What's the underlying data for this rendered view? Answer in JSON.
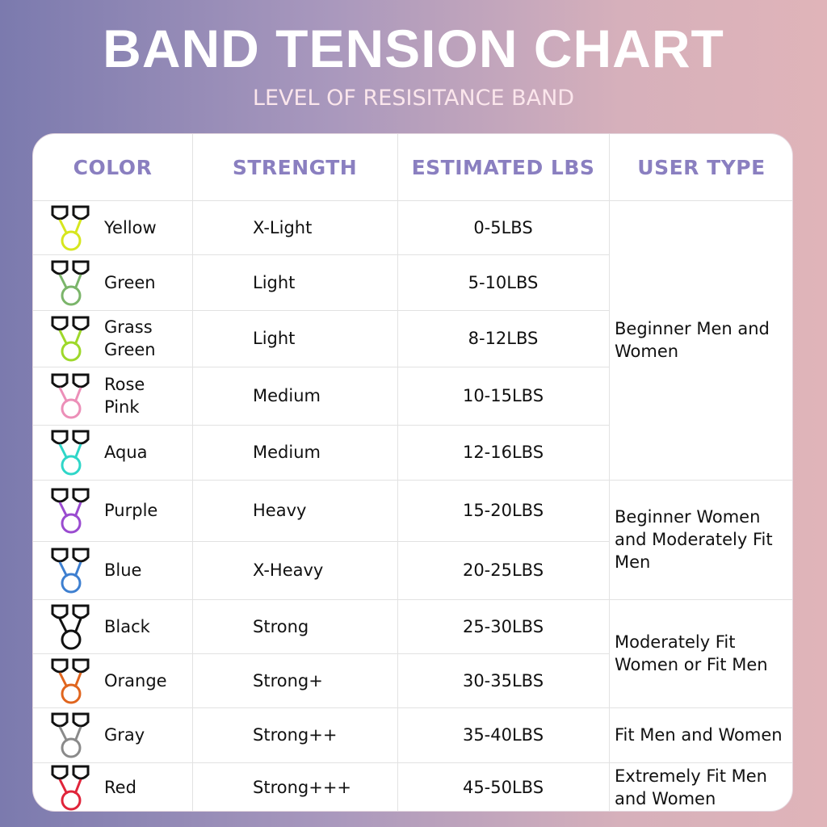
{
  "header": {
    "title": "BAND TENSION CHART",
    "subtitle": "LEVEL OF RESISITANCE BAND"
  },
  "table": {
    "columns": [
      "COLOR",
      "STRENGTH",
      "ESTIMATED LBS",
      "USER TYPE"
    ],
    "rows": [
      {
        "color": "Yellow",
        "swatch": "#d6e61e",
        "strength": "X-Light",
        "lbs": "0-5LBS"
      },
      {
        "color": "Green",
        "swatch": "#7bb56a",
        "strength": "Light",
        "lbs": "5-10LBS"
      },
      {
        "color": "Grass Green",
        "swatch": "#9ed82a",
        "strength": "Light",
        "lbs": "8-12LBS"
      },
      {
        "color": "Rose Pink",
        "swatch": "#ec8fb8",
        "strength": "Medium",
        "lbs": "10-15LBS"
      },
      {
        "color": "Aqua",
        "swatch": "#2fd6c8",
        "strength": "Medium",
        "lbs": "12-16LBS"
      },
      {
        "color": "Purple",
        "swatch": "#9a4bd0",
        "strength": "Heavy",
        "lbs": "15-20LBS"
      },
      {
        "color": "Blue",
        "swatch": "#3d7fd0",
        "strength": "X-Heavy",
        "lbs": "20-25LBS"
      },
      {
        "color": "Black",
        "swatch": "#111111",
        "strength": "Strong",
        "lbs": "25-30LBS"
      },
      {
        "color": "Orange",
        "swatch": "#e0651e",
        "strength": "Strong+",
        "lbs": "30-35LBS"
      },
      {
        "color": "Gray",
        "swatch": "#8a8a8a",
        "strength": "Strong++",
        "lbs": "35-40LBS"
      },
      {
        "color": "Red",
        "swatch": "#e0243a",
        "strength": "Strong+++",
        "lbs": "45-50LBS"
      }
    ],
    "user_types": [
      {
        "text": "Beginner Men and Women",
        "rows": [
          0,
          4
        ]
      },
      {
        "text": "Beginner Women and Moderately Fit Men",
        "rows": [
          5,
          6
        ]
      },
      {
        "text": "Moderately Fit Women or Fit Men",
        "rows": [
          7,
          8
        ]
      },
      {
        "text": "Fit Men and Women",
        "rows": [
          9,
          9
        ]
      },
      {
        "text": "Extremely Fit Men and Women",
        "rows": [
          10,
          10
        ]
      }
    ]
  }
}
